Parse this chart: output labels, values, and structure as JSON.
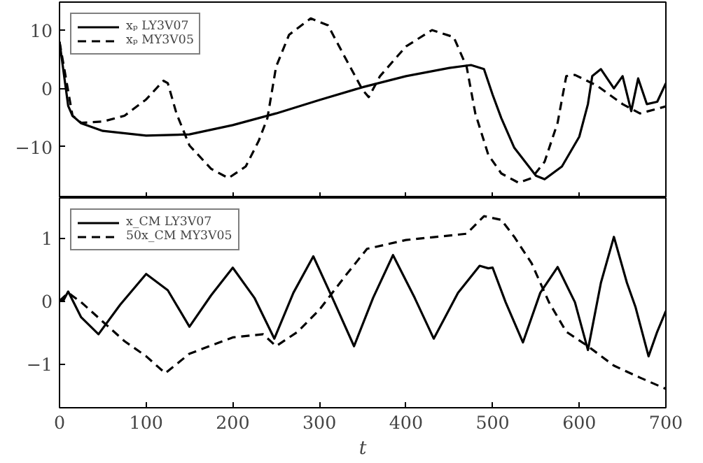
{
  "chart_data": [
    {
      "type": "line",
      "xlim": [
        0,
        700
      ],
      "xticks": [
        0,
        100,
        200,
        300,
        400,
        500,
        600,
        700
      ],
      "ylim": [
        -18.8,
        14.8
      ],
      "yticks": [
        -10,
        0,
        10
      ],
      "tick_labels": "y",
      "grid": false,
      "legend": "top left",
      "series": [
        {
          "name": "xₚ LY3V07",
          "color": "#000000",
          "line_style": "solid",
          "x": [
            0,
            10,
            15,
            25,
            50,
            100,
            150,
            200,
            250,
            300,
            350,
            400,
            450,
            475,
            490,
            500,
            510,
            525,
            550,
            560,
            580,
            600,
            610,
            615,
            625,
            640,
            650,
            660,
            668,
            678,
            690,
            700
          ],
          "values": [
            8,
            -3,
            -4.7,
            -6,
            -7.3,
            -8.1,
            -7.9,
            -6.3,
            -4.3,
            -2,
            0.2,
            2.1,
            3.5,
            4,
            3.3,
            -1.1,
            -5.1,
            -10.2,
            -15,
            -15.6,
            -13.4,
            -8.3,
            -2.7,
            2.1,
            3.3,
            0,
            2.1,
            -3.9,
            1.7,
            -2.7,
            -2.3,
            0.9
          ]
        },
        {
          "name": "xₚ MY3V05",
          "color": "#000000",
          "line_style": "dashed",
          "x": [
            0,
            15,
            25,
            50,
            75,
            100,
            120,
            125,
            135,
            150,
            175,
            195,
            215,
            230,
            240,
            250,
            265,
            290,
            310,
            330,
            350,
            357,
            370,
            400,
            430,
            455,
            470,
            480,
            495,
            510,
            530,
            545,
            560,
            575,
            585,
            595,
            620,
            650,
            670,
            700
          ],
          "values": [
            8,
            -4.7,
            -5.9,
            -5.7,
            -4.7,
            -1.9,
            1.3,
            0.9,
            -4.3,
            -9.8,
            -13.8,
            -15.4,
            -13.4,
            -9,
            -5.1,
            3.7,
            9.2,
            12,
            10.8,
            5.2,
            -0.3,
            -1.5,
            2.1,
            7.2,
            10,
            8.8,
            3.7,
            -4.3,
            -11.4,
            -14.6,
            -16.2,
            -15.4,
            -12.6,
            -5.9,
            2.1,
            2.3,
            0.5,
            -2.7,
            -4.3,
            -3.1
          ]
        }
      ]
    },
    {
      "type": "line",
      "xlim": [
        0,
        700
      ],
      "xticks": [
        0,
        100,
        200,
        300,
        400,
        500,
        600,
        700
      ],
      "ylim": [
        -1.7,
        1.64
      ],
      "yticks": [
        -1,
        0,
        1
      ],
      "xlabel": "t",
      "grid": false,
      "legend": "top left",
      "series": [
        {
          "name": "x_CM LY3V07",
          "color": "#000000",
          "line_style": "solid",
          "x": [
            0,
            5,
            10,
            25,
            45,
            70,
            100,
            125,
            150,
            175,
            200,
            225,
            248,
            270,
            293,
            315,
            340,
            362,
            385,
            410,
            432,
            460,
            485,
            495,
            500,
            515,
            535,
            555,
            575,
            595,
            610,
            625,
            640,
            655,
            665,
            680,
            690,
            700
          ],
          "values": [
            0,
            0.02,
            0.15,
            -0.26,
            -0.53,
            -0.06,
            0.43,
            0.17,
            -0.41,
            0.09,
            0.53,
            0.05,
            -0.6,
            0.13,
            0.71,
            0.05,
            -0.72,
            0.05,
            0.73,
            0.05,
            -0.6,
            0.13,
            0.56,
            0.52,
            0.53,
            -0.02,
            -0.66,
            0.13,
            0.54,
            -0.02,
            -0.78,
            0.29,
            1.02,
            0.29,
            -0.1,
            -0.88,
            -0.49,
            -0.16
          ]
        },
        {
          "name": "50x_CM MY3V05",
          "color": "#000000",
          "line_style": "dashed",
          "x": [
            0,
            10,
            25,
            50,
            75,
            100,
            122,
            150,
            200,
            235,
            250,
            275,
            300,
            330,
            355,
            400,
            470,
            490,
            510,
            525,
            545,
            565,
            585,
            610,
            640,
            670,
            700
          ],
          "values": [
            0,
            0.13,
            -0.02,
            -0.33,
            -0.64,
            -0.88,
            -1.15,
            -0.84,
            -0.58,
            -0.53,
            -0.72,
            -0.49,
            -0.14,
            0.4,
            0.83,
            0.97,
            1.07,
            1.35,
            1.29,
            1.02,
            0.6,
            -0.02,
            -0.49,
            -0.72,
            -1.03,
            -1.22,
            -1.4
          ]
        }
      ]
    }
  ]
}
